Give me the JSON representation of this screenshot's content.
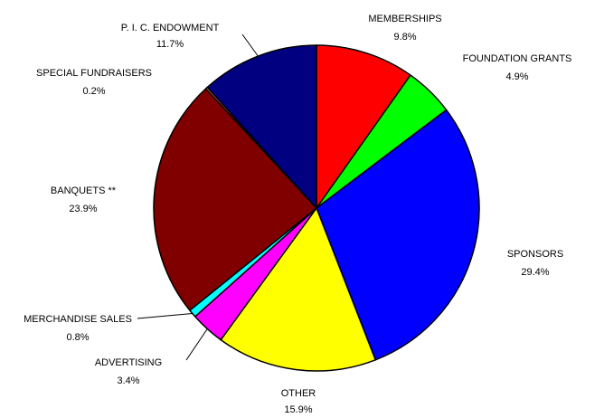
{
  "chart_data": {
    "type": "pie",
    "title": "",
    "slices": [
      {
        "label": "MEMBERSHIPS",
        "pct_label": "9.8%",
        "value": 9.8,
        "color": "#ff0000"
      },
      {
        "label": "FOUNDATION GRANTS",
        "pct_label": "4.9%",
        "value": 4.9,
        "color": "#00ff00"
      },
      {
        "label": "SPONSORS",
        "pct_label": "29.4%",
        "value": 29.4,
        "color": "#0000ff"
      },
      {
        "label": "OTHER",
        "pct_label": "15.9%",
        "value": 15.9,
        "color": "#ffff00"
      },
      {
        "label": "ADVERTISING",
        "pct_label": "3.4%",
        "value": 3.4,
        "color": "#ff00ff"
      },
      {
        "label": "MERCHANDISE SALES",
        "pct_label": "0.8%",
        "value": 0.8,
        "color": "#00ffff"
      },
      {
        "label": "BANQUETS **",
        "pct_label": "23.9%",
        "value": 23.9,
        "color": "#800000"
      },
      {
        "label": "SPECIAL FUNDRAISERS",
        "pct_label": "0.2%",
        "value": 0.2,
        "color": "#ff8080"
      },
      {
        "label": "P. I. C. ENDOWMENT",
        "pct_label": "11.7%",
        "value": 11.7,
        "color": "#000080"
      }
    ]
  }
}
